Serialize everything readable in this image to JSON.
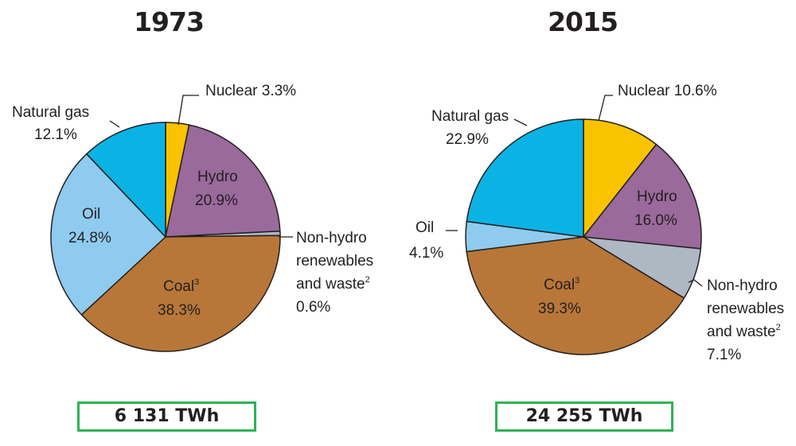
{
  "chart_data": [
    {
      "type": "pie",
      "title": "1973",
      "total": "6 131 TWh",
      "slices": [
        {
          "id": "nuclear",
          "label": "Nuclear",
          "sup": "",
          "value": 3.3,
          "pct": "3.3%",
          "color": "#f9c300"
        },
        {
          "id": "hydro",
          "label": "Hydro",
          "sup": "",
          "value": 20.9,
          "pct": "20.9%",
          "color": "#9a6a9c"
        },
        {
          "id": "nonhydro",
          "label_lines": [
            "Non-hydro",
            "renewables",
            "and waste"
          ],
          "sup": "2",
          "value": 0.6,
          "pct": "0.6%",
          "color": "#aeb8c3"
        },
        {
          "id": "coal",
          "label": "Coal",
          "sup": "3",
          "value": 38.3,
          "pct": "38.3%",
          "color": "#b87738"
        },
        {
          "id": "oil",
          "label": "Oil",
          "sup": "",
          "value": 24.8,
          "pct": "24.8%",
          "color": "#8fcbee"
        },
        {
          "id": "gas",
          "label": "Natural gas",
          "sup": "",
          "value": 12.1,
          "pct": "12.1%",
          "color": "#0ab3e4"
        }
      ]
    },
    {
      "type": "pie",
      "title": "2015",
      "total": "24 255 TWh",
      "slices": [
        {
          "id": "nuclear",
          "label": "Nuclear",
          "sup": "",
          "value": 10.6,
          "pct": "10.6%",
          "color": "#f9c300"
        },
        {
          "id": "hydro",
          "label": "Hydro",
          "sup": "",
          "value": 16.0,
          "pct": "16.0%",
          "color": "#9a6a9c"
        },
        {
          "id": "nonhydro",
          "label_lines": [
            "Non-hydro",
            "renewables",
            "and waste"
          ],
          "sup": "2",
          "value": 7.1,
          "pct": "7.1%",
          "color": "#aeb8c3"
        },
        {
          "id": "coal",
          "label": "Coal",
          "sup": "3",
          "value": 39.3,
          "pct": "39.3%",
          "color": "#b87738"
        },
        {
          "id": "oil",
          "label": "Oil",
          "sup": "",
          "value": 4.1,
          "pct": "4.1%",
          "color": "#8fcbee"
        },
        {
          "id": "gas",
          "label": "Natural gas",
          "sup": "",
          "value": 22.9,
          "pct": "22.9%",
          "color": "#0ab3e4"
        }
      ]
    }
  ]
}
